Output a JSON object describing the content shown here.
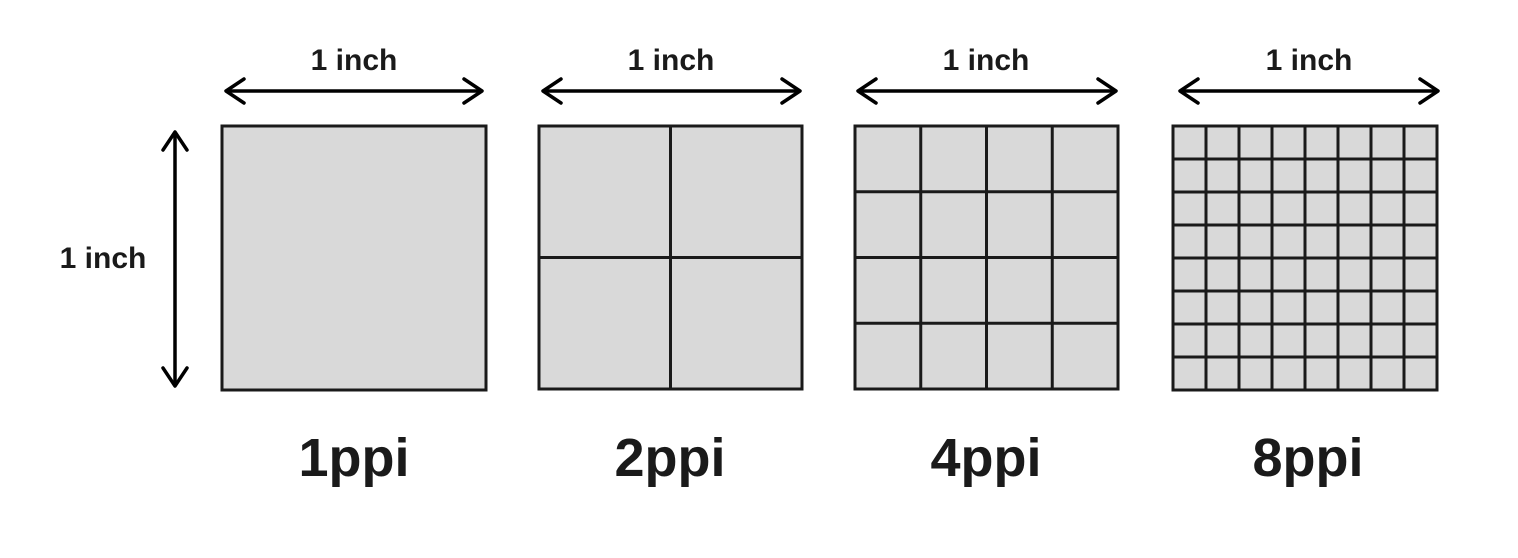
{
  "vertical_dimension": {
    "label": "1 inch"
  },
  "panels": [
    {
      "width_label": "1 inch",
      "resolution_label": "1ppi",
      "grid_divisions": 1
    },
    {
      "width_label": "1 inch",
      "resolution_label": "2ppi",
      "grid_divisions": 2
    },
    {
      "width_label": "1 inch",
      "resolution_label": "4ppi",
      "grid_divisions": 4
    },
    {
      "width_label": "1 inch",
      "resolution_label": "8ppi",
      "grid_divisions": 8
    }
  ],
  "colors": {
    "cell_fill": "#d9d9d9",
    "stroke": "#1a1a1a"
  }
}
